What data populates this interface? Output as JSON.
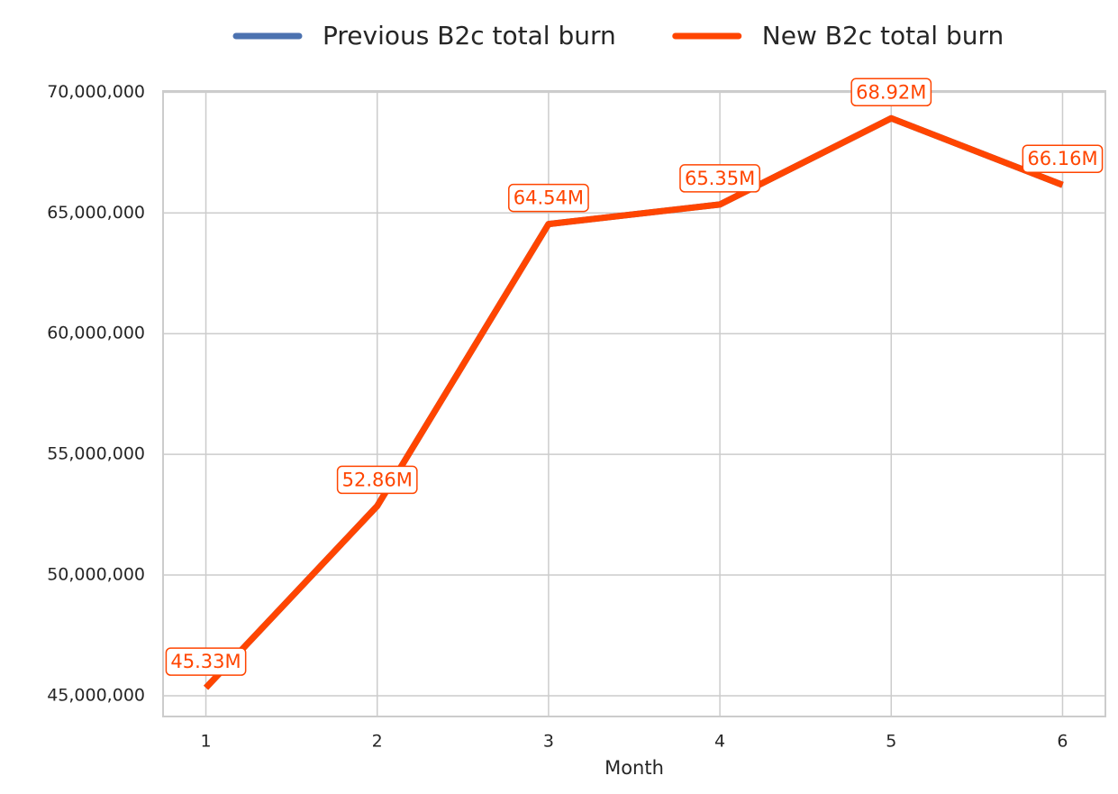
{
  "chart_data": {
    "type": "line",
    "x": [
      1,
      2,
      3,
      4,
      5,
      6
    ],
    "series": [
      {
        "name": "Previous B2c total burn",
        "color": "#4c72b0",
        "values": [
          45330000,
          52860000,
          64540000,
          65350000,
          68920000,
          66160000
        ]
      },
      {
        "name": "New B2c total burn",
        "color": "#ff4500",
        "values": [
          45330000,
          52860000,
          64540000,
          65350000,
          68920000,
          66160000
        ],
        "value_labels": [
          "45.33M",
          "52.86M",
          "64.54M",
          "65.35M",
          "68.92M",
          "66.16M"
        ]
      }
    ],
    "xlabel": "Month",
    "xlim": [
      0.75,
      6.25
    ],
    "xticks": [
      1,
      2,
      3,
      4,
      5,
      6
    ],
    "ylim": [
      44140000,
      70050000
    ],
    "yticks": [
      {
        "value": 45000000,
        "label": "45,000,000"
      },
      {
        "value": 50000000,
        "label": "50,000,000"
      },
      {
        "value": 55000000,
        "label": "55,000,000"
      },
      {
        "value": 60000000,
        "label": "60,000,000"
      },
      {
        "value": 65000000,
        "label": "65,000,000"
      },
      {
        "value": 70000000,
        "label": "70,000,000"
      }
    ],
    "grid": true,
    "legend": "top"
  }
}
